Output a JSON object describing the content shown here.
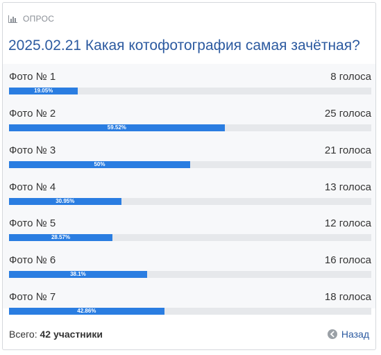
{
  "poll": {
    "header_label": "ОПРОС",
    "title": "2025.02.21 Какая котофотография самая зачётная?",
    "options": [
      {
        "label": "Фото № 1",
        "count": "8 голоса",
        "percent_label": "19.05%",
        "percent": 19.05
      },
      {
        "label": "Фото № 2",
        "count": "25 голоса",
        "percent_label": "59.52%",
        "percent": 59.52
      },
      {
        "label": "Фото № 3",
        "count": "21 голоса",
        "percent_label": "50%",
        "percent": 50
      },
      {
        "label": "Фото № 4",
        "count": "13 голоса",
        "percent_label": "30.95%",
        "percent": 30.95
      },
      {
        "label": "Фото № 5",
        "count": "12 голоса",
        "percent_label": "28.57%",
        "percent": 28.57
      },
      {
        "label": "Фото № 6",
        "count": "16 голоса",
        "percent_label": "38.1%",
        "percent": 38.1
      },
      {
        "label": "Фото № 7",
        "count": "18 голоса",
        "percent_label": "42.86%",
        "percent": 42.86
      }
    ],
    "total_prefix": "Всего:",
    "total_value": "42 участники",
    "back_label": "Назад"
  },
  "colors": {
    "accent": "#2a7de1",
    "title": "#2c5aa0",
    "track": "#e6e8eb"
  },
  "icons": {
    "header": "bar-chart-icon",
    "back": "arrow-left-circle-icon"
  }
}
